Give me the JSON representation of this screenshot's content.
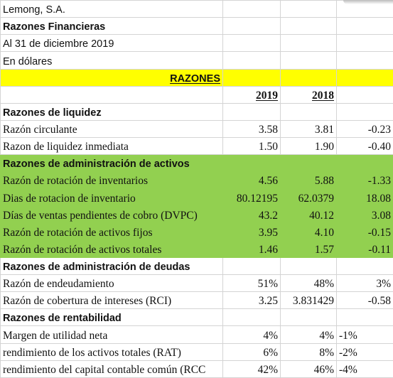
{
  "header": {
    "company": "Lemong, S.A.",
    "report": "Razones Financieras",
    "date": "Al 31 de diciembre 2019",
    "currency": "En dólares"
  },
  "banner": {
    "title": "RAZONES"
  },
  "columns": {
    "y2019": "2019",
    "y2018": "2018"
  },
  "sections": {
    "liquidez": "Razones de liquidez",
    "activos": "Razones de administración de activos",
    "deudas": "Razones de administración de deudas",
    "rentabilidad": "Razones de rentabilidad"
  },
  "rows": {
    "liquidez": [
      {
        "label": "Razón circulante",
        "v2019": "3.58",
        "v2018": "3.81",
        "diff": "-0.23"
      },
      {
        "label": "Razon de liquidez inmediata",
        "v2019": "1.50",
        "v2018": "1.90",
        "diff": "-0.40"
      }
    ],
    "activos": [
      {
        "label": "Razón de rotación de inventarios",
        "v2019": "4.56",
        "v2018": "5.88",
        "diff": "-1.33"
      },
      {
        "label": "Dias de rotacion de inventario",
        "v2019": "80.12195",
        "v2018": "62.0379",
        "diff": "18.08"
      },
      {
        "label": "Días de ventas pendientes de cobro (DVPC)",
        "v2019": "43.2",
        "v2018": "40.12",
        "diff": "3.08"
      },
      {
        "label": "Razón de rotación de activos fijos",
        "v2019": "3.95",
        "v2018": "4.10",
        "diff": "-0.15"
      },
      {
        "label": "Razón de rotación de activos totales",
        "v2019": "1.46",
        "v2018": "1.57",
        "diff": "-0.11"
      }
    ],
    "deudas": [
      {
        "label": "Razón de endeudamiento",
        "v2019": "51%",
        "v2018": "48%",
        "diff": "3%"
      },
      {
        "label": "Razón de cobertura de intereses (RCI)",
        "v2019": "3.25",
        "v2018": "3.831429",
        "diff": "-0.58"
      }
    ],
    "rentabilidad": [
      {
        "label": "Margen de utilidad neta",
        "v2019": "4%",
        "v2018": "4%",
        "diff": "-1%"
      },
      {
        "label": "rendimiento de los activos totales (RAT)",
        "v2019": "6%",
        "v2018": "8%",
        "diff": "-2%"
      },
      {
        "label": "rendimiento del capital contable común (RCC",
        "v2019": "42%",
        "v2018": "46%",
        "diff": "-4%"
      }
    ]
  },
  "colors": {
    "banner": "#ffff00",
    "section_highlight": "#92d050"
  }
}
